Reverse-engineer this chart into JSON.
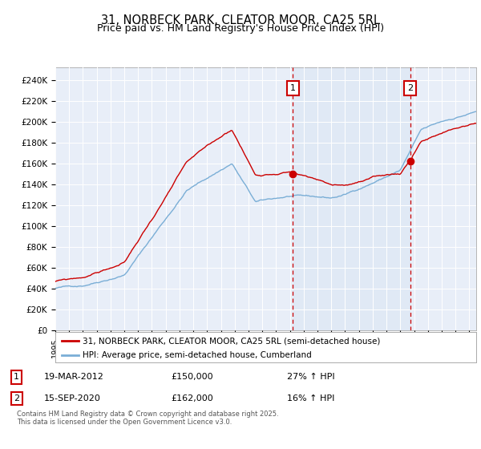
{
  "title": "31, NORBECK PARK, CLEATOR MOOR, CA25 5RL",
  "subtitle": "Price paid vs. HM Land Registry's House Price Index (HPI)",
  "ylabel_ticks": [
    "£0",
    "£20K",
    "£40K",
    "£60K",
    "£80K",
    "£100K",
    "£120K",
    "£140K",
    "£160K",
    "£180K",
    "£200K",
    "£220K",
    "£240K"
  ],
  "ytick_values": [
    0,
    20000,
    40000,
    60000,
    80000,
    100000,
    120000,
    140000,
    160000,
    180000,
    200000,
    220000,
    240000
  ],
  "ylim": [
    0,
    252000
  ],
  "xlim_start": 1995.0,
  "xlim_end": 2025.5,
  "marker1_x": 2012.22,
  "marker1_y": 150000,
  "marker2_x": 2020.71,
  "marker2_y": 162000,
  "marker1_date": "19-MAR-2012",
  "marker1_price": "£150,000",
  "marker1_hpi": "27% ↑ HPI",
  "marker2_date": "15-SEP-2020",
  "marker2_price": "£162,000",
  "marker2_hpi": "16% ↑ HPI",
  "legend_entry1": "31, NORBECK PARK, CLEATOR MOOR, CA25 5RL (semi-detached house)",
  "legend_entry2": "HPI: Average price, semi-detached house, Cumberland",
  "footnote": "Contains HM Land Registry data © Crown copyright and database right 2025.\nThis data is licensed under the Open Government Licence v3.0.",
  "line_color_red": "#cc0000",
  "line_color_blue": "#7aaed6",
  "shade_color": "#dde8f5",
  "plot_bg_color": "#e8eef8",
  "grid_color": "#ffffff",
  "title_fontsize": 10.5,
  "subtitle_fontsize": 9
}
